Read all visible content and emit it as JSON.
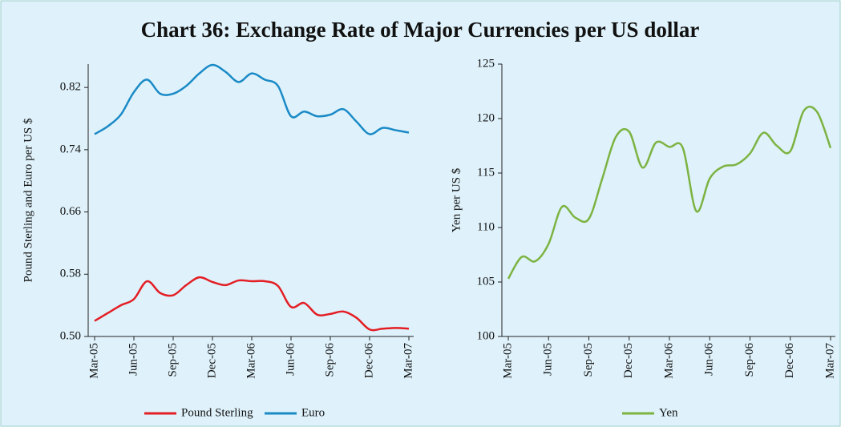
{
  "title": "Chart 36: Exchange Rate of Major Currencies per US dollar",
  "chart_data": [
    {
      "type": "line",
      "y_label": "Pound Sterling and Euro per US $",
      "categories": [
        "Mar-05",
        null,
        null,
        "Jun-05",
        null,
        null,
        "Sep-05",
        null,
        null,
        "Dec-05",
        null,
        null,
        "Mar-06",
        null,
        null,
        "Jun-06",
        null,
        null,
        "Sep-06",
        null,
        null,
        "Dec-06",
        null,
        null,
        "Mar-07"
      ],
      "series": [
        {
          "name": "Pound Sterling",
          "color": "#e31e24",
          "values": [
            0.52,
            0.53,
            0.54,
            0.548,
            0.571,
            0.556,
            0.553,
            0.566,
            0.576,
            0.57,
            0.566,
            0.572,
            0.571,
            0.571,
            0.565,
            0.538,
            0.543,
            0.528,
            0.529,
            0.532,
            0.524,
            0.509,
            0.51,
            0.511,
            0.51
          ]
        },
        {
          "name": "Euro",
          "color": "#1a8ac6",
          "values": [
            0.76,
            0.77,
            0.785,
            0.814,
            0.83,
            0.812,
            0.812,
            0.822,
            0.838,
            0.849,
            0.84,
            0.827,
            0.838,
            0.83,
            0.822,
            0.783,
            0.789,
            0.783,
            0.785,
            0.792,
            0.776,
            0.76,
            0.768,
            0.765,
            0.762
          ]
        }
      ],
      "ylim": [
        0.5,
        0.85
      ],
      "yticks": [
        {
          "value": 0.5,
          "label": "0.50"
        },
        0.58,
        0.66,
        0.74,
        0.82
      ],
      "legend": "bottom"
    },
    {
      "type": "line",
      "y_label": "Yen per US $",
      "categories": [
        "Mar-05",
        null,
        null,
        "Jun-05",
        null,
        null,
        "Sep-05",
        null,
        null,
        "Dec-05",
        null,
        null,
        "Mar-06",
        null,
        null,
        "Jun-06",
        null,
        null,
        "Sep-06",
        null,
        null,
        "Dec-06",
        null,
        null,
        "Mar-07"
      ],
      "series": [
        {
          "name": "Yen",
          "color": "#7cb342",
          "values": [
            105.3,
            107.3,
            106.9,
            108.5,
            111.9,
            110.9,
            110.8,
            114.5,
            118.3,
            118.8,
            115.5,
            117.8,
            117.4,
            117.3,
            111.5,
            114.5,
            115.6,
            115.8,
            116.8,
            118.7,
            117.5,
            117.0,
            120.7,
            120.6,
            117.3
          ]
        }
      ],
      "ylim": [
        100,
        125
      ],
      "yticks": [
        100,
        105,
        110,
        115,
        120,
        125
      ],
      "legend": "bottom"
    }
  ]
}
